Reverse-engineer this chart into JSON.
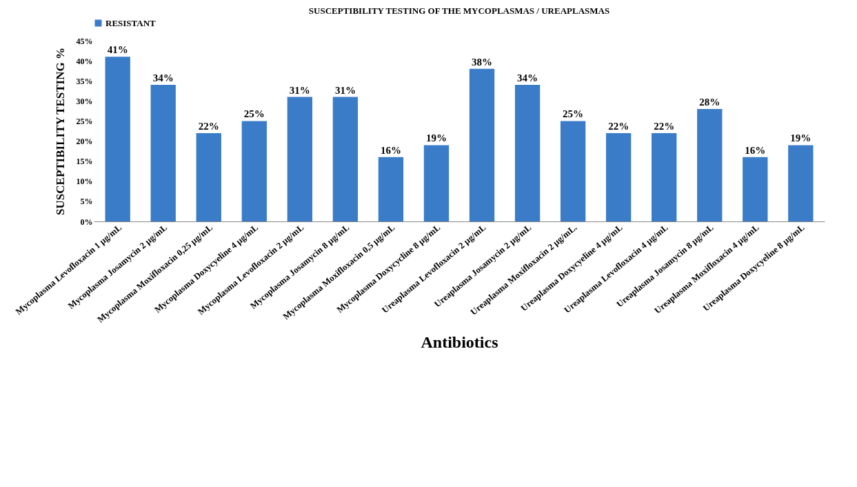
{
  "chart_data": {
    "type": "bar",
    "title": "SUSCEPTIBILITY TESTING  OF THE MYCOPLASMAS / UREAPLASMAS",
    "xlabel": "Antibiotics",
    "ylabel": "SUSCEPTIBILITY TESTING  %",
    "categories": [
      "Mycoplasma Levofloxacin 1 µg/mL",
      "Mycoplasma Josamycin 2 µg/mL",
      "Mycoplasma Moxifloxacin 0,25 µg/mL",
      "Mycoplasma Doxycyeline 4 µg/mL",
      "Mycoplasma Levofloxacin 2 µg/mL",
      "Mycoplasma Josamycin 8 µg/mL",
      "Mycoplasma Moxifloxacin 0,5 µg/mL",
      "Mycoplasma Doxycycline 8 µg/mL",
      "Ureaplasma Levofloxacin 2 µg/mL",
      "Ureaplasma Josamycin 2 µg/mL",
      "Ureaplasma Moxifloxacin 2 µg/mL.",
      "Ureaplasma Doxycyeline 4 µg/mL",
      "Ureaplasma Levofloxacin 4 µg/mL",
      "Ureaplasma Josamycin 8 µg/mL",
      "Ureaplasma Moxifloxacin 4 µg/mL",
      "Ureaplasma Doxycyeline 8 µg/mL"
    ],
    "series": [
      {
        "name": "RESISTANT",
        "color": "#3a7cc8",
        "values": [
          41,
          34,
          22,
          25,
          31,
          31,
          16,
          19,
          38,
          34,
          25,
          22,
          22,
          28,
          16,
          19
        ],
        "value_labels": [
          "41%",
          "34%",
          "22%",
          "25%",
          "31%",
          "31%",
          "16%",
          "19%",
          "38%",
          "34%",
          "25%",
          "22%",
          "22%",
          "28%",
          "16%",
          "19%"
        ]
      }
    ],
    "ylim": [
      0,
      45
    ],
    "yticks": [
      {
        "value": 0,
        "label": "0%"
      },
      {
        "value": 5,
        "label": "5%"
      },
      {
        "value": 10,
        "label": "10%"
      },
      {
        "value": 15,
        "label": "15%"
      },
      {
        "value": 20,
        "label": "20%"
      },
      {
        "value": 25,
        "label": "25%"
      },
      {
        "value": 30,
        "label": "30%"
      },
      {
        "value": 35,
        "label": "35%"
      },
      {
        "value": 40,
        "label": "40%"
      },
      {
        "value": 45,
        "label": "45%"
      }
    ],
    "grid": false,
    "legend": "top"
  }
}
